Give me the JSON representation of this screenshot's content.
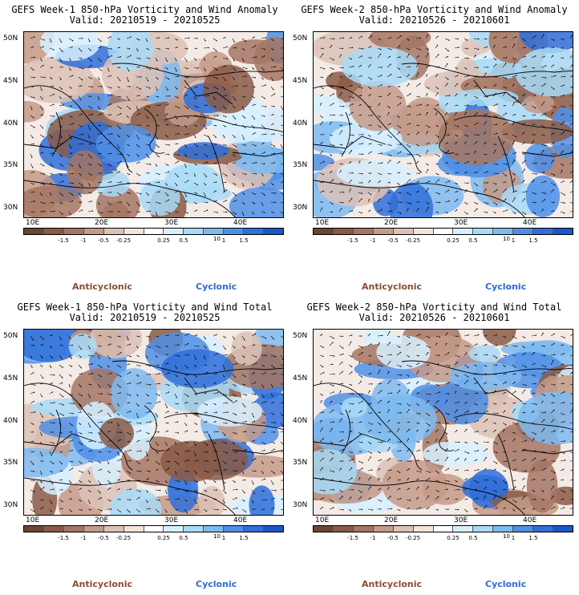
{
  "panels": [
    {
      "id": "p1",
      "title": "GEFS Week-1 850-hPa Vorticity and Wind Anomaly",
      "valid": "Valid: 20210519 - 20210525"
    },
    {
      "id": "p2",
      "title": "GEFS Week-2 850-hPa Vorticity and Wind Anomaly",
      "valid": "Valid: 20210526 - 20210601"
    },
    {
      "id": "p3",
      "title": "GEFS Week-1 850-hPa Vorticity and Wind Total",
      "valid": "Valid: 20210519 - 20210525"
    },
    {
      "id": "p4",
      "title": "GEFS Week-2 850-hPa Vorticity and Wind Total",
      "valid": "Valid: 20210526 - 20210601"
    }
  ],
  "lat_labels": [
    "50N",
    "45N",
    "40N",
    "35N",
    "30N"
  ],
  "lon_labels": [
    "10E",
    "20E",
    "30E",
    "40E"
  ],
  "colorbar": {
    "colors": [
      "#6b4534",
      "#8a5a46",
      "#a47663",
      "#c49a88",
      "#dcc2b6",
      "#f2e3db",
      "#ffffff",
      "#d7f0ff",
      "#a8daf7",
      "#7ebaf0",
      "#4f8fe6",
      "#2f6fd8",
      "#1a56c8"
    ],
    "tick_labels": [
      "-1.5",
      "-1",
      "-0.5",
      "-0.25",
      "0.25",
      "0.5",
      "1",
      "1.5"
    ],
    "unit": "10"
  },
  "legend": {
    "anticyclonic": "Anticyclonic",
    "cyclonic": "Cyclonic"
  },
  "colors": {
    "anticyclonic": "#8b4a36",
    "cyclonic": "#2b6bd4",
    "positive_fill": "#5a9be6",
    "negative_fill": "#a27461"
  }
}
